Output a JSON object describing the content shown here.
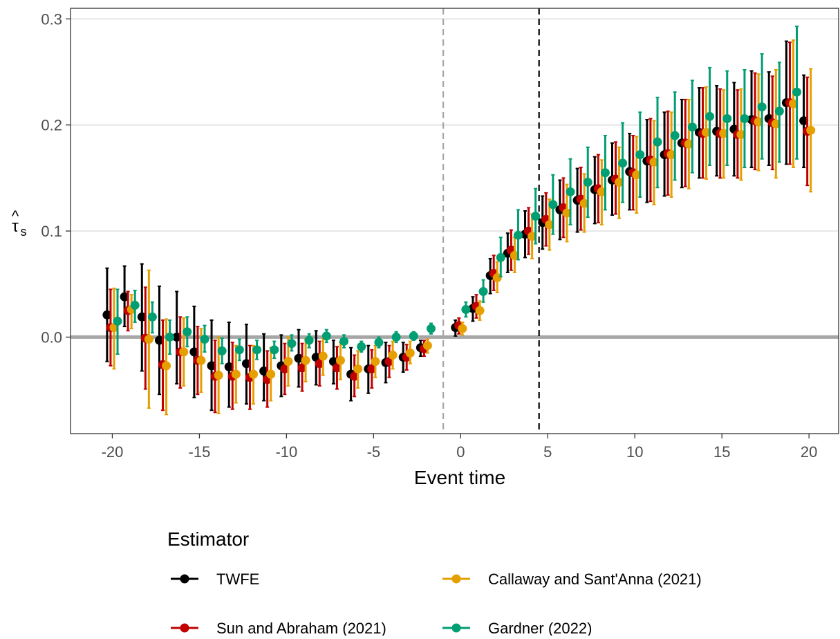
{
  "chart_data": {
    "type": "scatter",
    "title": "",
    "xlabel": "Event time",
    "ylabel": "τ̂s",
    "ylabel_base": "τ",
    "ylabel_hat": "^",
    "ylabel_sub": "s",
    "xlim": [
      -22.4,
      21.7
    ],
    "ylim": [
      -0.091,
      0.31
    ],
    "x_ticks": [
      -20,
      -15,
      -10,
      -5,
      0,
      5,
      10,
      15,
      20
    ],
    "x_tick_labels": [
      "-20",
      "-15",
      "-10",
      "-5",
      "0",
      "5",
      "10",
      "15",
      "20"
    ],
    "y_ticks": [
      0.0,
      0.1,
      0.2,
      0.3
    ],
    "y_tick_labels": [
      "0.0",
      "0.1",
      "0.2",
      "0.3"
    ],
    "grid": "horizontal",
    "reference_lines": [
      {
        "axis": "y",
        "value": 0,
        "style": "solid",
        "color": "#a6a6a6"
      },
      {
        "axis": "x",
        "value": -1,
        "style": "dashed",
        "color": "#a6a6a6"
      },
      {
        "axis": "x",
        "value": 4.5,
        "style": "dashed",
        "color": "#000000"
      }
    ],
    "legend": {
      "title": "Estimator",
      "position": "bottom"
    },
    "error_bars": true,
    "series": [
      {
        "name": "TWFE",
        "color": "#000000",
        "x_offset": -0.3,
        "points": [
          [
            -20,
            0.021,
            -0.023,
            0.065
          ],
          [
            -19,
            0.038,
            0.01,
            0.067
          ],
          [
            -18,
            0.019,
            -0.032,
            0.069
          ],
          [
            -17,
            -0.003,
            -0.054,
            0.048
          ],
          [
            -16,
            0.0,
            -0.044,
            0.043
          ],
          [
            -15,
            -0.014,
            -0.057,
            0.029
          ],
          [
            -14,
            -0.027,
            -0.069,
            0.016
          ],
          [
            -13,
            -0.028,
            -0.066,
            0.014
          ],
          [
            -12,
            -0.025,
            -0.063,
            0.012
          ],
          [
            -11,
            -0.032,
            -0.06,
            0.003
          ],
          [
            -10,
            -0.027,
            -0.056,
            0.002
          ],
          [
            -9,
            -0.02,
            -0.047,
            0.007
          ],
          [
            -8,
            -0.019,
            -0.045,
            0.006
          ],
          [
            -7,
            -0.023,
            -0.044,
            -0.003
          ],
          [
            -6,
            -0.035,
            -0.06,
            -0.01
          ],
          [
            -5,
            -0.03,
            -0.053,
            -0.008
          ],
          [
            -4,
            -0.024,
            -0.043,
            -0.005
          ],
          [
            -3,
            -0.019,
            -0.033,
            -0.005
          ],
          [
            -2,
            -0.01,
            -0.018,
            -0.003
          ],
          [
            0,
            0.009,
            0.001,
            0.016
          ],
          [
            1,
            0.027,
            0.015,
            0.038
          ],
          [
            2,
            0.058,
            0.041,
            0.074
          ],
          [
            3,
            0.079,
            0.061,
            0.098
          ],
          [
            4,
            0.097,
            0.075,
            0.119
          ],
          [
            5,
            0.108,
            0.083,
            0.133
          ],
          [
            6,
            0.12,
            0.092,
            0.148
          ],
          [
            7,
            0.129,
            0.099,
            0.159
          ],
          [
            8,
            0.139,
            0.107,
            0.17
          ],
          [
            9,
            0.148,
            0.115,
            0.183
          ],
          [
            10,
            0.156,
            0.12,
            0.192
          ],
          [
            11,
            0.166,
            0.127,
            0.205
          ],
          [
            12,
            0.172,
            0.133,
            0.212
          ],
          [
            13,
            0.183,
            0.141,
            0.224
          ],
          [
            14,
            0.193,
            0.15,
            0.235
          ],
          [
            15,
            0.194,
            0.152,
            0.237
          ],
          [
            16,
            0.196,
            0.152,
            0.24
          ],
          [
            17,
            0.205,
            0.16,
            0.251
          ],
          [
            18,
            0.206,
            0.162,
            0.25
          ],
          [
            19,
            0.221,
            0.163,
            0.279
          ],
          [
            20,
            0.204,
            0.16,
            0.247
          ]
        ]
      },
      {
        "name": "Sun and Abraham (2021)",
        "color": "#c00000",
        "x_offset": -0.1,
        "points": [
          [
            -20,
            0.009,
            -0.027,
            0.045
          ],
          [
            -19,
            0.025,
            0.006,
            0.043
          ],
          [
            -18,
            -0.001,
            -0.049,
            0.047
          ],
          [
            -17,
            -0.026,
            -0.069,
            0.016
          ],
          [
            -16,
            -0.014,
            -0.048,
            0.019
          ],
          [
            -15,
            -0.022,
            -0.054,
            0.01
          ],
          [
            -14,
            -0.037,
            -0.071,
            -0.003
          ],
          [
            -13,
            -0.037,
            -0.068,
            -0.005
          ],
          [
            -12,
            -0.038,
            -0.068,
            -0.008
          ],
          [
            -11,
            -0.04,
            -0.066,
            -0.013
          ],
          [
            -10,
            -0.03,
            -0.054,
            -0.006
          ],
          [
            -9,
            -0.029,
            -0.051,
            -0.006
          ],
          [
            -8,
            -0.025,
            -0.046,
            -0.004
          ],
          [
            -7,
            -0.029,
            -0.049,
            -0.009
          ],
          [
            -6,
            -0.037,
            -0.056,
            -0.017
          ],
          [
            -5,
            -0.03,
            -0.048,
            -0.012
          ],
          [
            -4,
            -0.023,
            -0.038,
            -0.008
          ],
          [
            -3,
            -0.019,
            -0.031,
            -0.007
          ],
          [
            -2,
            -0.011,
            -0.018,
            -0.003
          ],
          [
            0,
            0.011,
            0.003,
            0.018
          ],
          [
            1,
            0.029,
            0.018,
            0.04
          ],
          [
            2,
            0.06,
            0.044,
            0.077
          ],
          [
            3,
            0.082,
            0.063,
            0.101
          ],
          [
            4,
            0.1,
            0.078,
            0.122
          ],
          [
            5,
            0.111,
            0.086,
            0.136
          ],
          [
            6,
            0.122,
            0.094,
            0.15
          ],
          [
            7,
            0.13,
            0.101,
            0.16
          ],
          [
            8,
            0.14,
            0.108,
            0.172
          ],
          [
            9,
            0.149,
            0.116,
            0.184
          ],
          [
            10,
            0.155,
            0.12,
            0.19
          ],
          [
            11,
            0.167,
            0.128,
            0.206
          ],
          [
            12,
            0.173,
            0.134,
            0.213
          ],
          [
            13,
            0.183,
            0.142,
            0.224
          ],
          [
            14,
            0.192,
            0.15,
            0.235
          ],
          [
            15,
            0.192,
            0.15,
            0.234
          ],
          [
            16,
            0.191,
            0.15,
            0.233
          ],
          [
            17,
            0.204,
            0.158,
            0.249
          ],
          [
            18,
            0.202,
            0.158,
            0.246
          ],
          [
            19,
            0.221,
            0.163,
            0.278
          ],
          [
            20,
            0.194,
            0.143,
            0.245
          ]
        ]
      },
      {
        "name": "Callaway and Sant'Anna (2021)",
        "color": "#e69f00",
        "x_offset": 0.1,
        "points": [
          [
            -20,
            0.009,
            -0.03,
            0.046
          ],
          [
            -19,
            0.026,
            0.008,
            0.04
          ],
          [
            -18,
            -0.002,
            -0.067,
            0.063
          ],
          [
            -17,
            -0.027,
            -0.073,
            0.017
          ],
          [
            -16,
            -0.014,
            -0.046,
            0.018
          ],
          [
            -15,
            -0.022,
            -0.052,
            0.008
          ],
          [
            -14,
            -0.036,
            -0.072,
            0.0
          ],
          [
            -13,
            -0.035,
            -0.062,
            -0.008
          ],
          [
            -12,
            -0.035,
            -0.063,
            -0.008
          ],
          [
            -11,
            -0.035,
            -0.06,
            -0.01
          ],
          [
            -10,
            -0.023,
            -0.046,
            0.0
          ],
          [
            -9,
            -0.022,
            -0.042,
            -0.002
          ],
          [
            -8,
            -0.018,
            -0.036,
            -0.001
          ],
          [
            -7,
            -0.022,
            -0.04,
            -0.005
          ],
          [
            -6,
            -0.03,
            -0.048,
            -0.013
          ],
          [
            -5,
            -0.023,
            -0.038,
            -0.008
          ],
          [
            -4,
            -0.017,
            -0.03,
            -0.004
          ],
          [
            -3,
            -0.015,
            -0.025,
            -0.004
          ],
          [
            -2,
            -0.008,
            -0.015,
            -0.002
          ],
          [
            0,
            0.008,
            0.002,
            0.014
          ],
          [
            1,
            0.025,
            0.016,
            0.034
          ],
          [
            2,
            0.056,
            0.042,
            0.071
          ],
          [
            3,
            0.077,
            0.061,
            0.094
          ],
          [
            4,
            0.095,
            0.074,
            0.116
          ],
          [
            5,
            0.106,
            0.082,
            0.13
          ],
          [
            6,
            0.117,
            0.09,
            0.144
          ],
          [
            7,
            0.126,
            0.099,
            0.154
          ],
          [
            8,
            0.137,
            0.106,
            0.167
          ],
          [
            9,
            0.146,
            0.112,
            0.179
          ],
          [
            10,
            0.153,
            0.117,
            0.189
          ],
          [
            11,
            0.165,
            0.125,
            0.204
          ],
          [
            12,
            0.172,
            0.132,
            0.212
          ],
          [
            13,
            0.182,
            0.14,
            0.224
          ],
          [
            14,
            0.193,
            0.149,
            0.236
          ],
          [
            15,
            0.192,
            0.15,
            0.233
          ],
          [
            16,
            0.191,
            0.148,
            0.234
          ],
          [
            17,
            0.203,
            0.157,
            0.248
          ],
          [
            18,
            0.201,
            0.15,
            0.252
          ],
          [
            19,
            0.22,
            0.16,
            0.28
          ],
          [
            20,
            0.195,
            0.137,
            0.253
          ]
        ]
      },
      {
        "name": "Gardner (2022)",
        "color": "#009e73",
        "x_offset": 0.3,
        "points": [
          [
            -20,
            0.015,
            -0.016,
            0.045
          ],
          [
            -19,
            0.03,
            0.014,
            0.044
          ],
          [
            -18,
            0.019,
            0.004,
            0.033
          ],
          [
            -17,
            0.0,
            -0.016,
            0.016
          ],
          [
            -16,
            0.005,
            -0.009,
            0.019
          ],
          [
            -15,
            -0.002,
            -0.014,
            0.011
          ],
          [
            -14,
            -0.013,
            -0.025,
            -0.001
          ],
          [
            -13,
            -0.012,
            -0.022,
            -0.002
          ],
          [
            -12,
            -0.012,
            -0.021,
            -0.003
          ],
          [
            -11,
            -0.012,
            -0.02,
            -0.004
          ],
          [
            -10,
            -0.006,
            -0.013,
            0.002
          ],
          [
            -9,
            -0.003,
            -0.01,
            0.003
          ],
          [
            -8,
            0.001,
            -0.005,
            0.007
          ],
          [
            -7,
            -0.004,
            -0.01,
            0.002
          ],
          [
            -6,
            -0.009,
            -0.014,
            -0.004
          ],
          [
            -5,
            -0.005,
            -0.01,
            0.0
          ],
          [
            -4,
            0.0,
            -0.005,
            0.005
          ],
          [
            -3,
            0.001,
            -0.003,
            0.005
          ],
          [
            -2,
            0.008,
            0.003,
            0.013
          ],
          [
            0,
            0.026,
            0.019,
            0.033
          ],
          [
            1,
            0.043,
            0.033,
            0.054
          ],
          [
            2,
            0.075,
            0.057,
            0.094
          ],
          [
            3,
            0.096,
            0.073,
            0.12
          ],
          [
            4,
            0.114,
            0.088,
            0.14
          ],
          [
            5,
            0.125,
            0.097,
            0.153
          ],
          [
            6,
            0.137,
            0.106,
            0.168
          ],
          [
            7,
            0.146,
            0.113,
            0.179
          ],
          [
            8,
            0.155,
            0.12,
            0.19
          ],
          [
            9,
            0.164,
            0.127,
            0.202
          ],
          [
            10,
            0.172,
            0.132,
            0.212
          ],
          [
            11,
            0.184,
            0.141,
            0.226
          ],
          [
            12,
            0.19,
            0.148,
            0.231
          ],
          [
            13,
            0.198,
            0.155,
            0.242
          ],
          [
            14,
            0.208,
            0.162,
            0.254
          ],
          [
            15,
            0.206,
            0.162,
            0.251
          ],
          [
            16,
            0.206,
            0.16,
            0.252
          ],
          [
            17,
            0.217,
            0.168,
            0.267
          ],
          [
            18,
            0.213,
            0.165,
            0.259
          ],
          [
            19,
            0.231,
            0.168,
            0.293
          ],
          [
            20,
            null,
            null,
            null
          ]
        ]
      }
    ]
  }
}
